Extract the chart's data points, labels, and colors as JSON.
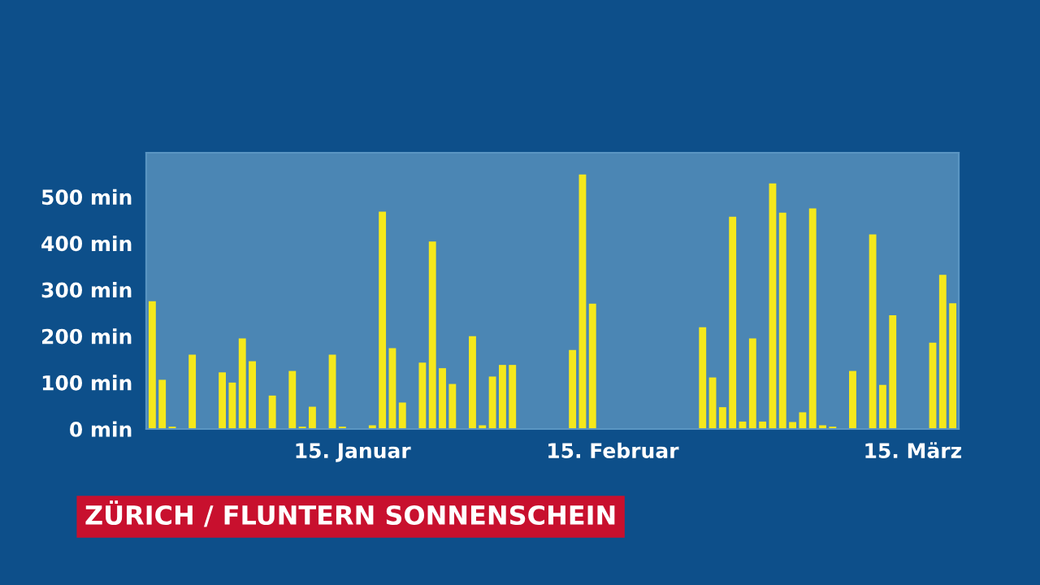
{
  "chart_data": {
    "type": "bar",
    "title": "ZÜRICH / FLUNTERN SONNENSCHEIN",
    "categories": [
      null,
      null,
      null,
      null,
      null,
      null,
      null,
      null,
      null,
      null,
      null,
      null,
      null,
      null,
      null,
      null,
      null,
      null,
      null,
      null,
      "15. Januar",
      null,
      null,
      null,
      null,
      null,
      null,
      null,
      null,
      null,
      null,
      null,
      null,
      null,
      null,
      null,
      null,
      null,
      null,
      null,
      null,
      null,
      null,
      null,
      null,
      null,
      "15. Februar",
      null,
      null,
      null,
      null,
      null,
      null,
      null,
      null,
      null,
      null,
      null,
      null,
      null,
      null,
      null,
      null,
      null,
      null,
      null,
      null,
      null,
      null,
      null,
      null,
      null,
      null,
      null,
      null,
      null,
      "15. März",
      null,
      null,
      null,
      null
    ],
    "values": [
      275,
      106,
      5,
      0,
      160,
      0,
      0,
      122,
      100,
      195,
      146,
      0,
      72,
      0,
      125,
      5,
      48,
      0,
      160,
      5,
      0,
      0,
      8,
      468,
      174,
      57,
      0,
      143,
      404,
      131,
      97,
      0,
      200,
      8,
      113,
      138,
      138,
      0,
      0,
      0,
      0,
      0,
      170,
      548,
      270,
      0,
      0,
      0,
      0,
      0,
      0,
      0,
      0,
      0,
      0,
      219,
      111,
      47,
      457,
      16,
      195,
      16,
      529,
      466,
      15,
      36,
      475,
      8,
      5,
      0,
      125,
      0,
      419,
      95,
      245,
      0,
      0,
      0,
      186,
      332,
      271
    ],
    "color": "#f5e81c",
    "ylim": [
      0,
      595
    ],
    "yticks": [
      {
        "value": 0,
        "label": "0 min"
      },
      {
        "value": 100,
        "label": "100 min"
      },
      {
        "value": 200,
        "label": "200 min"
      },
      {
        "value": 300,
        "label": "300 min"
      },
      {
        "value": 400,
        "label": "400 min"
      },
      {
        "value": 500,
        "label": "500 min"
      }
    ],
    "grid": false,
    "legend": false
  }
}
